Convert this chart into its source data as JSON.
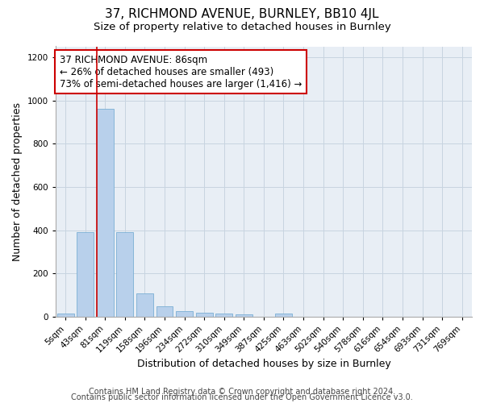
{
  "title1": "37, RICHMOND AVENUE, BURNLEY, BB10 4JL",
  "title2": "Size of property relative to detached houses in Burnley",
  "xlabel": "Distribution of detached houses by size in Burnley",
  "ylabel": "Number of detached properties",
  "categories": [
    "5sqm",
    "43sqm",
    "81sqm",
    "119sqm",
    "158sqm",
    "196sqm",
    "234sqm",
    "272sqm",
    "310sqm",
    "349sqm",
    "387sqm",
    "425sqm",
    "463sqm",
    "502sqm",
    "540sqm",
    "578sqm",
    "616sqm",
    "654sqm",
    "693sqm",
    "731sqm",
    "769sqm"
  ],
  "values": [
    15,
    390,
    960,
    390,
    110,
    50,
    25,
    20,
    15,
    10,
    0,
    15,
    0,
    0,
    0,
    0,
    0,
    0,
    0,
    0,
    0
  ],
  "bar_color": "#b8d0eb",
  "bar_edgecolor": "#7bafd4",
  "grid_color": "#c8d4e0",
  "background_color": "#e8eef5",
  "vline_x_index": 2,
  "vline_color": "#cc0000",
  "annotation_text": "37 RICHMOND AVENUE: 86sqm\n← 26% of detached houses are smaller (493)\n73% of semi-detached houses are larger (1,416) →",
  "annotation_box_edgecolor": "#cc0000",
  "annotation_box_facecolor": "#ffffff",
  "ylim": [
    0,
    1250
  ],
  "yticks": [
    0,
    200,
    400,
    600,
    800,
    1000,
    1200
  ],
  "footer1": "Contains HM Land Registry data © Crown copyright and database right 2024.",
  "footer2": "Contains public sector information licensed under the Open Government Licence v3.0.",
  "title1_fontsize": 11,
  "title2_fontsize": 9.5,
  "xlabel_fontsize": 9,
  "ylabel_fontsize": 9,
  "tick_fontsize": 7.5,
  "annotation_fontsize": 8.5,
  "footer_fontsize": 7
}
